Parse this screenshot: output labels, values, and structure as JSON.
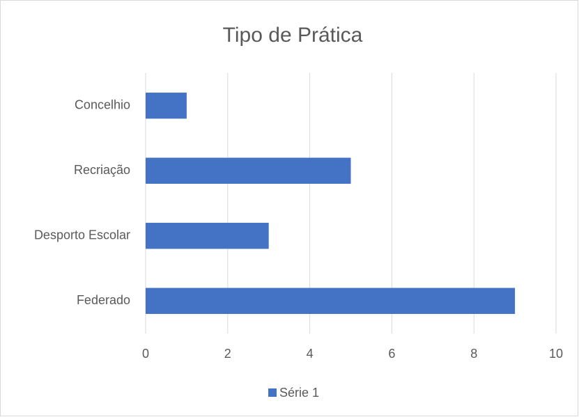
{
  "chart_data": {
    "type": "hbar",
    "title": "Tipo de Prática",
    "categories": [
      "Concelhio",
      "Recriação",
      "Desporto Escolar",
      "Federado"
    ],
    "series": [
      {
        "name": "Série 1",
        "color": "#4472c4",
        "values": [
          1,
          5,
          3,
          9
        ]
      }
    ],
    "xlim": [
      0,
      10
    ],
    "xticks": [
      0,
      2,
      4,
      6,
      8,
      10
    ],
    "grid": true,
    "legend": "bottom"
  }
}
